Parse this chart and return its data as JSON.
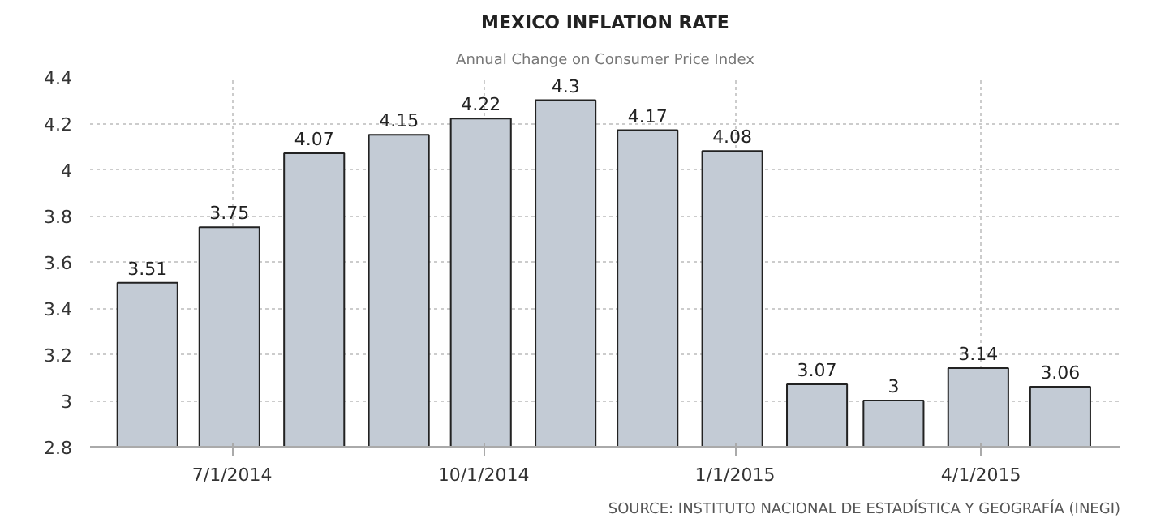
{
  "chart_data": {
    "type": "bar",
    "title": "MEXICO INFLATION RATE",
    "subtitle": "Annual Change on Consumer Price Index",
    "x": [
      "2014-05-31",
      "2014-06-30",
      "2014-07-31",
      "2014-08-31",
      "2014-09-30",
      "2014-10-31",
      "2014-11-30",
      "2014-12-31",
      "2015-01-31",
      "2015-02-28",
      "2015-03-31",
      "2015-04-30"
    ],
    "values": [
      3.51,
      3.75,
      4.07,
      4.15,
      4.22,
      4.3,
      4.17,
      4.08,
      3.07,
      3,
      3.14,
      3.06
    ],
    "color": "#c3cbd5",
    "data_labels": true,
    "ylim": [
      2.8,
      4.4
    ],
    "yticks": [
      2.8,
      3,
      3.2,
      3.4,
      3.6,
      3.8,
      4,
      4.2,
      4.4
    ],
    "xlim": [
      "2014-05-10",
      "2015-05-22"
    ],
    "xticks": [
      {
        "value": "2014-07-01",
        "label": "7/1/2014"
      },
      {
        "value": "2014-10-01",
        "label": "10/1/2014"
      },
      {
        "value": "2015-01-01",
        "label": "1/1/2015"
      },
      {
        "value": "2015-04-01",
        "label": "4/1/2015"
      }
    ],
    "grid": true,
    "annotations": [
      "SOURCE: INSTITUTO NACIONAL DE ESTADÍSTICA Y GEOGRAFÍA (INEGI)"
    ]
  }
}
